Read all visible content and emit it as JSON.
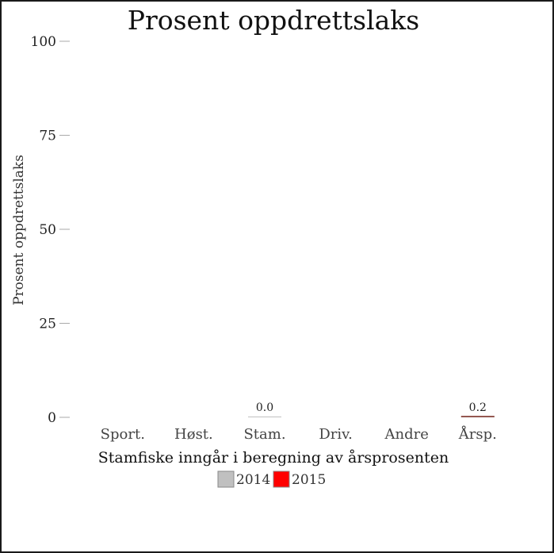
{
  "chart_data": {
    "type": "bar",
    "title": "Prosent oppdrettslaks",
    "ylabel": "Prosent oppdrettslaks",
    "xlabel": "Stamfiske inngår i beregning av årsprosenten",
    "categories": [
      "Sport.",
      "Høst.",
      "Stam.",
      "Driv.",
      "Andre",
      "Årsp."
    ],
    "ylim": [
      0,
      100
    ],
    "yticks": [
      0,
      25,
      50,
      75,
      100
    ],
    "series": [
      {
        "name": "2014",
        "color": "#c0c0c0",
        "values": [
          null,
          null,
          0.0,
          null,
          null,
          0.2
        ]
      },
      {
        "name": "2015",
        "color": "#ff0000",
        "values": [
          null,
          null,
          null,
          null,
          null,
          null
        ]
      }
    ],
    "data_labels": [
      {
        "category": "Stam.",
        "text": "0.0"
      },
      {
        "category": "Årsp.",
        "text": "0.2"
      }
    ],
    "grid": false,
    "legend": "bottom-center"
  }
}
